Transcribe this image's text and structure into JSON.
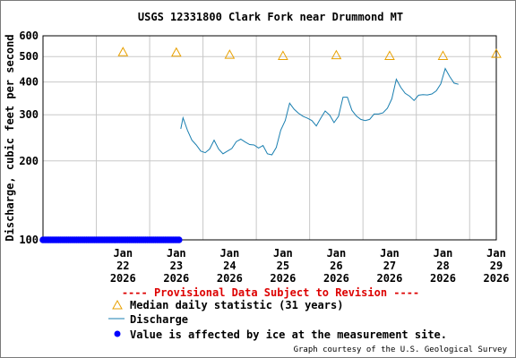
{
  "chart_data": {
    "type": "line",
    "title": "USGS 12331800 Clark Fork near Drummond MT",
    "ylabel": "Discharge, cubic feet per second",
    "yscale": "log",
    "ylim": [
      100,
      600
    ],
    "yticks": [
      100,
      200,
      300,
      400,
      500,
      600
    ],
    "xlim": [
      "2026-01-21",
      "2026-01-29 12:00"
    ],
    "xticks": [
      {
        "date": "2026-01-22",
        "lines": [
          "Jan",
          "22",
          "2026"
        ]
      },
      {
        "date": "2026-01-23",
        "lines": [
          "Jan",
          "23",
          "2026"
        ]
      },
      {
        "date": "2026-01-24",
        "lines": [
          "Jan",
          "24",
          "2026"
        ]
      },
      {
        "date": "2026-01-25",
        "lines": [
          "Jan",
          "25",
          "2026"
        ]
      },
      {
        "date": "2026-01-26",
        "lines": [
          "Jan",
          "26",
          "2026"
        ]
      },
      {
        "date": "2026-01-27",
        "lines": [
          "Jan",
          "27",
          "2026"
        ]
      },
      {
        "date": "2026-01-28",
        "lines": [
          "Jan",
          "28",
          "2026"
        ]
      },
      {
        "date": "2026-01-29",
        "lines": [
          "Jan",
          "29",
          "2026"
        ]
      }
    ],
    "grid": true,
    "series": [
      {
        "name": "Median daily statistic (31 years)",
        "kind": "triangle",
        "color": "#e8a000",
        "points": [
          {
            "x": "2026-01-22 12:00",
            "y": 520
          },
          {
            "x": "2026-01-23 12:00",
            "y": 518
          },
          {
            "x": "2026-01-24 12:00",
            "y": 508
          },
          {
            "x": "2026-01-25 12:00",
            "y": 503
          },
          {
            "x": "2026-01-26 12:00",
            "y": 506
          },
          {
            "x": "2026-01-27 12:00",
            "y": 503
          },
          {
            "x": "2026-01-28 12:00",
            "y": 503
          },
          {
            "x": "2026-01-29 12:00",
            "y": 512
          }
        ]
      },
      {
        "name": "Discharge",
        "kind": "line",
        "color": "#1a7fb0",
        "points": [
          {
            "x": "2026-01-23 14:00",
            "y": 265
          },
          {
            "x": "2026-01-23 15:00",
            "y": 292
          },
          {
            "x": "2026-01-23 17:00",
            "y": 262
          },
          {
            "x": "2026-01-23 19:00",
            "y": 240
          },
          {
            "x": "2026-01-23 21:00",
            "y": 230
          },
          {
            "x": "2026-01-23 23:00",
            "y": 218
          },
          {
            "x": "2026-01-24 01:00",
            "y": 215
          },
          {
            "x": "2026-01-24 03:00",
            "y": 222
          },
          {
            "x": "2026-01-24 05:00",
            "y": 240
          },
          {
            "x": "2026-01-24 07:00",
            "y": 222
          },
          {
            "x": "2026-01-24 09:00",
            "y": 213
          },
          {
            "x": "2026-01-24 11:00",
            "y": 218
          },
          {
            "x": "2026-01-24 13:00",
            "y": 223
          },
          {
            "x": "2026-01-24 15:00",
            "y": 237
          },
          {
            "x": "2026-01-24 17:00",
            "y": 242
          },
          {
            "x": "2026-01-24 19:00",
            "y": 236
          },
          {
            "x": "2026-01-24 21:00",
            "y": 231
          },
          {
            "x": "2026-01-24 23:00",
            "y": 230
          },
          {
            "x": "2026-01-25 01:00",
            "y": 224
          },
          {
            "x": "2026-01-25 03:00",
            "y": 229
          },
          {
            "x": "2026-01-25 05:00",
            "y": 213
          },
          {
            "x": "2026-01-25 07:00",
            "y": 211
          },
          {
            "x": "2026-01-25 09:00",
            "y": 225
          },
          {
            "x": "2026-01-25 11:00",
            "y": 262
          },
          {
            "x": "2026-01-25 13:00",
            "y": 285
          },
          {
            "x": "2026-01-25 15:00",
            "y": 332
          },
          {
            "x": "2026-01-25 17:00",
            "y": 315
          },
          {
            "x": "2026-01-25 19:00",
            "y": 304
          },
          {
            "x": "2026-01-25 21:00",
            "y": 296
          },
          {
            "x": "2026-01-25 23:00",
            "y": 291
          },
          {
            "x": "2026-01-26 01:00",
            "y": 285
          },
          {
            "x": "2026-01-26 03:00",
            "y": 272
          },
          {
            "x": "2026-01-26 05:00",
            "y": 291
          },
          {
            "x": "2026-01-26 07:00",
            "y": 310
          },
          {
            "x": "2026-01-26 09:00",
            "y": 299
          },
          {
            "x": "2026-01-26 11:00",
            "y": 280
          },
          {
            "x": "2026-01-26 13:00",
            "y": 296
          },
          {
            "x": "2026-01-26 15:00",
            "y": 350
          },
          {
            "x": "2026-01-26 17:00",
            "y": 350
          },
          {
            "x": "2026-01-26 19:00",
            "y": 312
          },
          {
            "x": "2026-01-26 21:00",
            "y": 297
          },
          {
            "x": "2026-01-26 23:00",
            "y": 288
          },
          {
            "x": "2026-01-27 01:00",
            "y": 285
          },
          {
            "x": "2026-01-27 03:00",
            "y": 288
          },
          {
            "x": "2026-01-27 05:00",
            "y": 302
          },
          {
            "x": "2026-01-27 07:00",
            "y": 302
          },
          {
            "x": "2026-01-27 09:00",
            "y": 305
          },
          {
            "x": "2026-01-27 11:00",
            "y": 318
          },
          {
            "x": "2026-01-27 13:00",
            "y": 345
          },
          {
            "x": "2026-01-27 15:00",
            "y": 410
          },
          {
            "x": "2026-01-27 17:00",
            "y": 382
          },
          {
            "x": "2026-01-27 19:00",
            "y": 362
          },
          {
            "x": "2026-01-27 21:00",
            "y": 353
          },
          {
            "x": "2026-01-27 23:00",
            "y": 340
          },
          {
            "x": "2026-01-28 01:00",
            "y": 356
          },
          {
            "x": "2026-01-28 03:00",
            "y": 358
          },
          {
            "x": "2026-01-28 05:00",
            "y": 357
          },
          {
            "x": "2026-01-28 07:00",
            "y": 360
          },
          {
            "x": "2026-01-28 09:00",
            "y": 370
          },
          {
            "x": "2026-01-28 11:00",
            "y": 393
          },
          {
            "x": "2026-01-28 13:00",
            "y": 450
          },
          {
            "x": "2026-01-28 15:00",
            "y": 420
          },
          {
            "x": "2026-01-28 17:00",
            "y": 396
          },
          {
            "x": "2026-01-28 19:00",
            "y": 392
          }
        ]
      },
      {
        "name": "Value is affected by ice at the measurement site.",
        "kind": "dots",
        "color": "#0000ff",
        "y": 100,
        "from": "2026-01-21",
        "to": "2026-01-23 14:00"
      }
    ]
  },
  "provisional_note": "---- Provisional Data Subject to Revision ----",
  "credit": "Graph courtesy of the U.S. Geological Survey"
}
